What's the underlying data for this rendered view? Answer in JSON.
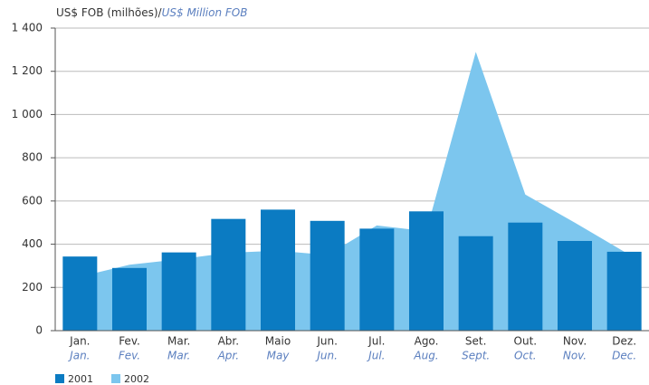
{
  "chart_data": {
    "type": "bar-area",
    "ylabel": "US$ FOB (milhões)/",
    "ylabel_en": "US$ Million FOB",
    "categories": [
      "Jan.",
      "Fev.",
      "Mar.",
      "Abr.",
      "Maio",
      "Jun.",
      "Jul.",
      "Ago.",
      "Set.",
      "Out.",
      "Nov.",
      "Dez."
    ],
    "categories_en": [
      "Jan.",
      "Fev.",
      "Mar.",
      "Apr.",
      "May",
      "Jun.",
      "Jul.",
      "Aug.",
      "Sept.",
      "Oct.",
      "Nov.",
      "Dec."
    ],
    "series": [
      {
        "name": "2001",
        "color": "#0b7bc2",
        "mark": "bar",
        "values": [
          343,
          290,
          362,
          517,
          560,
          508,
          472,
          552,
          437,
          500,
          415,
          365
        ]
      },
      {
        "name": "2002",
        "color": "#7cc6ee",
        "mark": "area",
        "values": [
          250,
          305,
          330,
          360,
          370,
          350,
          487,
          460,
          1290,
          630,
          500,
          365
        ]
      }
    ],
    "ylim": [
      0,
      1400
    ],
    "yticks": [
      0,
      200,
      400,
      600,
      800,
      {
        "value": 1000,
        "label": "1 000"
      },
      {
        "value": 1200,
        "label": "1 200"
      },
      {
        "value": 1400,
        "label": "1 400"
      }
    ],
    "grid": true
  }
}
